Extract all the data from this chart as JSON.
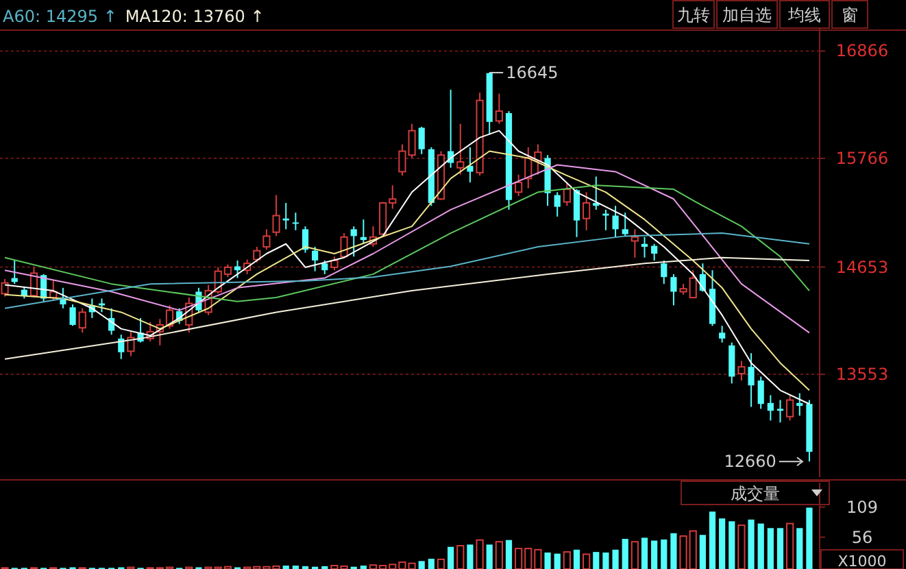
{
  "chart_data": [
    {
      "type": "candlestick",
      "categories": [
        null,
        null,
        null,
        null,
        null,
        null,
        null,
        null,
        null,
        null,
        null,
        null,
        null,
        null,
        null,
        null,
        null,
        null,
        null,
        null,
        null,
        null,
        null,
        null,
        null,
        null,
        null,
        null,
        null,
        null,
        null,
        null,
        null,
        null,
        null,
        null,
        null,
        null,
        null,
        null,
        null,
        null,
        null,
        null,
        null,
        null,
        null,
        null,
        null,
        null,
        null,
        null,
        null,
        null,
        null,
        null,
        null,
        null,
        null,
        null,
        null,
        null,
        null,
        null,
        null,
        null,
        null,
        null,
        null,
        null,
        null,
        null,
        null,
        null,
        null,
        null,
        null,
        null,
        null,
        null,
        null,
        null,
        null,
        null
      ],
      "ohlc": [
        [
          14380,
          14530,
          14350,
          14490
        ],
        [
          14540,
          14720,
          14480,
          14500
        ],
        [
          14420,
          14450,
          14330,
          14360
        ],
        [
          14360,
          14650,
          14340,
          14590
        ],
        [
          14570,
          14580,
          14300,
          14330
        ],
        [
          14340,
          14520,
          14310,
          14400
        ],
        [
          14340,
          14440,
          14230,
          14270
        ],
        [
          14240,
          14270,
          14050,
          14060
        ],
        [
          14030,
          14230,
          13980,
          14190
        ],
        [
          14260,
          14330,
          14130,
          14190
        ],
        [
          14280,
          14330,
          14190,
          14260
        ],
        [
          14130,
          14230,
          13960,
          14000
        ],
        [
          13920,
          13960,
          13710,
          13780
        ],
        [
          13790,
          13990,
          13740,
          13930
        ],
        [
          13980,
          14130,
          13880,
          13890
        ],
        [
          13920,
          14090,
          13890,
          13990
        ],
        [
          13990,
          14120,
          13850,
          14060
        ],
        [
          14050,
          14260,
          14020,
          14210
        ],
        [
          14200,
          14230,
          14070,
          14100
        ],
        [
          14060,
          14340,
          13980,
          14280
        ],
        [
          14400,
          14440,
          14190,
          14210
        ],
        [
          14190,
          14470,
          14160,
          14410
        ],
        [
          14400,
          14650,
          14380,
          14610
        ],
        [
          14580,
          14680,
          14550,
          14650
        ],
        [
          14660,
          14720,
          14540,
          14620
        ],
        [
          14620,
          14730,
          14580,
          14690
        ],
        [
          14730,
          14860,
          14700,
          14820
        ],
        [
          14860,
          15040,
          14830,
          14970
        ],
        [
          15010,
          15390,
          14970,
          15180
        ],
        [
          15150,
          15310,
          15040,
          15130
        ],
        [
          15110,
          15210,
          15030,
          15100
        ],
        [
          15040,
          15070,
          14800,
          14830
        ],
        [
          14820,
          14860,
          14610,
          14720
        ],
        [
          14690,
          14720,
          14580,
          14620
        ],
        [
          14650,
          14760,
          14620,
          14720
        ],
        [
          14760,
          15000,
          14750,
          14960
        ],
        [
          15040,
          15070,
          14760,
          14970
        ],
        [
          14960,
          15140,
          14890,
          14930
        ],
        [
          14890,
          15070,
          14860,
          14960
        ],
        [
          14990,
          15320,
          14990,
          15310
        ],
        [
          15310,
          15490,
          15250,
          15350
        ],
        [
          15630,
          15910,
          15590,
          15840
        ],
        [
          15800,
          16120,
          15770,
          16050
        ],
        [
          16080,
          16090,
          15810,
          15860
        ],
        [
          15860,
          15880,
          15280,
          15310
        ],
        [
          15350,
          15840,
          15340,
          15800
        ],
        [
          15840,
          16470,
          15670,
          15720
        ],
        [
          15670,
          16120,
          15600,
          15730
        ],
        [
          15690,
          15880,
          15520,
          15630
        ],
        [
          15620,
          16440,
          15590,
          16360
        ],
        [
          16640,
          16645,
          16010,
          16140
        ],
        [
          16150,
          16430,
          16120,
          16250
        ],
        [
          16230,
          16250,
          15240,
          15340
        ],
        [
          15420,
          15600,
          15380,
          15520
        ],
        [
          15560,
          15880,
          15460,
          15770
        ],
        [
          15740,
          15910,
          15600,
          15830
        ],
        [
          15770,
          15800,
          15280,
          15410
        ],
        [
          15390,
          15420,
          15170,
          15270
        ],
        [
          15320,
          15520,
          15280,
          15450
        ],
        [
          15440,
          15450,
          14960,
          15130
        ],
        [
          15150,
          15420,
          15030,
          15310
        ],
        [
          15310,
          15580,
          15240,
          15280
        ],
        [
          15200,
          15240,
          15030,
          15180
        ],
        [
          15180,
          15280,
          14960,
          15040
        ],
        [
          15040,
          15210,
          14970,
          14990
        ],
        [
          14920,
          15040,
          14750,
          14960
        ],
        [
          14890,
          14960,
          14750,
          14860
        ],
        [
          14870,
          14890,
          14720,
          14790
        ],
        [
          14690,
          14720,
          14480,
          14550
        ],
        [
          14550,
          14580,
          14260,
          14400
        ],
        [
          14400,
          14480,
          14370,
          14430
        ],
        [
          14340,
          14620,
          14340,
          14540
        ],
        [
          14580,
          14690,
          14400,
          14410
        ],
        [
          14430,
          14620,
          14050,
          14070
        ],
        [
          13980,
          14050,
          13880,
          13920
        ],
        [
          13850,
          13880,
          13460,
          13530
        ],
        [
          13560,
          13690,
          13490,
          13630
        ],
        [
          13630,
          13770,
          13220,
          13440
        ],
        [
          13490,
          13530,
          13200,
          13250
        ],
        [
          13260,
          13340,
          13080,
          13180
        ],
        [
          13200,
          13290,
          13060,
          13180
        ],
        [
          13120,
          13340,
          13080,
          13290
        ],
        [
          13260,
          13360,
          13130,
          13230
        ],
        [
          13250,
          13290,
          12660,
          12760
        ]
      ],
      "series": [
        {
          "type": "line",
          "color": "#ffffff",
          "values": [
            14470,
            null,
            null,
            null,
            null,
            14410,
            null,
            null,
            null,
            14230,
            null,
            null,
            14020,
            null,
            null,
            13950,
            null,
            null,
            14130,
            null,
            null,
            null,
            14440,
            null,
            null,
            null,
            null,
            14790,
            null,
            14890,
            null,
            14650,
            null,
            null,
            null,
            14750,
            null,
            null,
            null,
            14970,
            null,
            null,
            15420,
            null,
            null,
            null,
            15770,
            null,
            null,
            15980,
            null,
            16050,
            null,
            15840,
            null,
            null,
            15700,
            null,
            null,
            15420,
            null,
            null,
            null,
            null,
            15170,
            null,
            null,
            null,
            14860,
            null,
            null,
            14580,
            null,
            null,
            14160,
            null,
            null,
            13670,
            null,
            null,
            13390,
            null,
            null,
            13250
          ]
        },
        {
          "type": "line",
          "color": "#f0e68c",
          "values": [
            14370,
            null,
            null,
            null,
            null,
            null,
            14330,
            null,
            null,
            null,
            null,
            null,
            14190,
            null,
            null,
            null,
            14020,
            null,
            null,
            null,
            null,
            14230,
            null,
            null,
            null,
            null,
            14580,
            null,
            null,
            null,
            null,
            14860,
            null,
            null,
            14790,
            null,
            null,
            null,
            14930,
            null,
            null,
            null,
            15070,
            null,
            null,
            null,
            15560,
            null,
            null,
            null,
            15840,
            null,
            null,
            null,
            15770,
            null,
            null,
            null,
            15590,
            null,
            null,
            null,
            15420,
            null,
            null,
            null,
            15140,
            null,
            null,
            null,
            null,
            14720,
            null,
            null,
            14440,
            null,
            null,
            14020,
            null,
            null,
            13670,
            null,
            null,
            13390
          ]
        },
        {
          "type": "line",
          "color": "#e89ae8",
          "values": [
            14620,
            null,
            null,
            null,
            null,
            null,
            null,
            null,
            null,
            null,
            null,
            14400,
            null,
            null,
            null,
            null,
            null,
            null,
            14210,
            null,
            null,
            null,
            null,
            null,
            14440,
            null,
            null,
            null,
            null,
            null,
            null,
            null,
            null,
            14540,
            null,
            null,
            null,
            null,
            14790,
            null,
            null,
            null,
            null,
            null,
            null,
            null,
            15240,
            null,
            null,
            null,
            null,
            null,
            null,
            null,
            null,
            null,
            null,
            15700,
            null,
            null,
            null,
            null,
            null,
            15630,
            null,
            null,
            null,
            null,
            null,
            15350,
            null,
            null,
            null,
            null,
            null,
            null,
            14480,
            null,
            null,
            null,
            null,
            null,
            null,
            13980
          ]
        },
        {
          "type": "line",
          "color": "#5cc85c",
          "values": [
            14750,
            null,
            null,
            null,
            null,
            null,
            null,
            null,
            null,
            null,
            null,
            14480,
            null,
            null,
            null,
            null,
            null,
            null,
            null,
            null,
            null,
            null,
            null,
            null,
            14300,
            null,
            null,
            null,
            14340,
            null,
            null,
            null,
            null,
            null,
            null,
            null,
            null,
            null,
            14580,
            null,
            null,
            null,
            null,
            null,
            null,
            null,
            15000,
            null,
            null,
            null,
            null,
            null,
            null,
            null,
            null,
            15420,
            null,
            null,
            null,
            null,
            null,
            15490,
            null,
            null,
            null,
            null,
            null,
            null,
            null,
            15450,
            null,
            null,
            15280,
            null,
            null,
            null,
            15070,
            null,
            null,
            null,
            14760,
            null,
            null,
            14410
          ]
        },
        {
          "name": "A60: 14295 ↑",
          "type": "line",
          "color": "#5ab4c8",
          "values": [
            14230,
            null,
            null,
            null,
            null,
            null,
            null,
            null,
            null,
            null,
            null,
            null,
            null,
            null,
            null,
            14480,
            null,
            null,
            null,
            null,
            null,
            null,
            null,
            null,
            null,
            null,
            null,
            null,
            null,
            null,
            null,
            14510,
            null,
            null,
            null,
            null,
            null,
            null,
            14550,
            null,
            null,
            null,
            null,
            null,
            null,
            null,
            14660,
            null,
            null,
            null,
            null,
            null,
            null,
            null,
            null,
            14860,
            null,
            null,
            null,
            null,
            null,
            null,
            null,
            null,
            14970,
            null,
            null,
            null,
            null,
            null,
            null,
            null,
            null,
            null,
            15000,
            null,
            null,
            null,
            null,
            null,
            null,
            null,
            null,
            14890
          ]
        },
        {
          "name": "MA120: 13760 ↑",
          "type": "line",
          "color": "#f5f0dc",
          "values": [
            13710,
            null,
            null,
            null,
            null,
            null,
            null,
            null,
            null,
            null,
            null,
            null,
            null,
            null,
            13920,
            null,
            null,
            null,
            null,
            null,
            null,
            null,
            null,
            null,
            null,
            null,
            null,
            null,
            14190,
            null,
            null,
            null,
            null,
            null,
            null,
            null,
            null,
            null,
            null,
            null,
            null,
            null,
            14410,
            null,
            null,
            null,
            null,
            null,
            null,
            null,
            null,
            null,
            null,
            null,
            null,
            null,
            14580,
            null,
            null,
            null,
            null,
            null,
            null,
            null,
            null,
            null,
            14690,
            null,
            null,
            null,
            null,
            null,
            null,
            null,
            14750,
            null,
            null,
            null,
            null,
            null,
            null,
            null,
            null,
            14720
          ]
        }
      ],
      "ylim": [
        12500,
        17080
      ],
      "yticks": [
        16866,
        15766,
        14653,
        13553
      ],
      "grid": "y",
      "legend": "top left",
      "annotations": [
        "16645",
        "12660",
        "九转",
        "加自选",
        "均线",
        "窗"
      ]
    },
    {
      "type": "bar",
      "title": "成交量",
      "ylabel": "X1000",
      "categories": [
        null,
        null,
        null,
        null,
        null,
        null,
        null,
        null,
        null,
        null,
        null,
        null,
        null,
        null,
        null,
        null,
        null,
        null,
        null,
        null,
        null,
        null,
        null,
        null,
        null,
        null,
        null,
        null,
        null,
        null,
        null,
        null,
        null,
        null,
        null,
        null,
        null,
        null,
        null,
        null,
        null,
        null,
        null,
        null,
        null,
        null,
        null,
        null,
        null,
        null,
        null,
        null,
        null,
        null,
        null,
        null,
        null,
        null,
        null,
        null,
        null,
        null,
        null,
        null,
        null,
        null,
        null,
        null,
        null,
        null,
        null,
        null,
        null,
        null,
        null,
        null,
        null,
        null,
        null,
        null,
        null,
        null,
        null,
        null
      ],
      "values": [
        2,
        2,
        2,
        2,
        2,
        2,
        2,
        3,
        2,
        2,
        2,
        2,
        3,
        3,
        2,
        2,
        2,
        3,
        2,
        3,
        3,
        3,
        3,
        4,
        3,
        3,
        4,
        4,
        5,
        6,
        6,
        5,
        4,
        5,
        6,
        5,
        4,
        6,
        7,
        6,
        8,
        12,
        10,
        14,
        18,
        17,
        39,
        41,
        43,
        51,
        43,
        48,
        51,
        36,
        36,
        34,
        29,
        27,
        30,
        34,
        26,
        30,
        29,
        34,
        53,
        48,
        55,
        50,
        52,
        63,
        58,
        67,
        60,
        101,
        89,
        84,
        77,
        87,
        80,
        72,
        72,
        80,
        72,
        108
      ],
      "colors": [
        "#d23c3c",
        "#54fcfc",
        "#54fcfc",
        "#d23c3c",
        "#54fcfc",
        "#d23c3c",
        "#54fcfc",
        "#54fcfc",
        "#d23c3c",
        "#54fcfc",
        "#54fcfc",
        "#54fcfc",
        "#54fcfc",
        "#d23c3c",
        "#54fcfc",
        "#d23c3c",
        "#d23c3c",
        "#d23c3c",
        "#54fcfc",
        "#d23c3c",
        "#54fcfc",
        "#d23c3c",
        "#d23c3c",
        "#d23c3c",
        "#54fcfc",
        "#d23c3c",
        "#d23c3c",
        "#d23c3c",
        "#d23c3c",
        "#54fcfc",
        "#54fcfc",
        "#54fcfc",
        "#54fcfc",
        "#54fcfc",
        "#d23c3c",
        "#d23c3c",
        "#54fcfc",
        "#54fcfc",
        "#d23c3c",
        "#d23c3c",
        "#d23c3c",
        "#d23c3c",
        "#d23c3c",
        "#54fcfc",
        "#54fcfc",
        "#d23c3c",
        "#54fcfc",
        "#d23c3c",
        "#54fcfc",
        "#d23c3c",
        "#54fcfc",
        "#d23c3c",
        "#54fcfc",
        "#d23c3c",
        "#d23c3c",
        "#d23c3c",
        "#54fcfc",
        "#54fcfc",
        "#d23c3c",
        "#54fcfc",
        "#d23c3c",
        "#54fcfc",
        "#54fcfc",
        "#54fcfc",
        "#54fcfc",
        "#d23c3c",
        "#54fcfc",
        "#54fcfc",
        "#54fcfc",
        "#54fcfc",
        "#d23c3c",
        "#d23c3c",
        "#54fcfc",
        "#54fcfc",
        "#54fcfc",
        "#54fcfc",
        "#d23c3c",
        "#54fcfc",
        "#54fcfc",
        "#54fcfc",
        "#54fcfc",
        "#d23c3c",
        "#54fcfc",
        "#54fcfc"
      ],
      "ylim": [
        0,
        152
      ],
      "yticks": [
        109,
        56
      ]
    }
  ]
}
